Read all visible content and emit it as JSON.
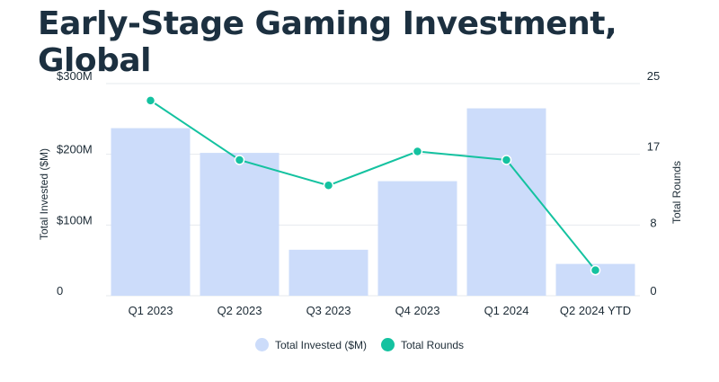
{
  "chart_data": {
    "type": "bar",
    "title": "Early-Stage Gaming Investment, Global",
    "categories": [
      "Q1 2023",
      "Q2 2023",
      "Q3 2023",
      "Q4 2023",
      "Q1 2024",
      "Q2 2024 YTD"
    ],
    "series": [
      {
        "name": "Total Invested ($M)",
        "type": "bar",
        "axis": "left",
        "values": [
          237,
          202,
          65,
          162,
          265,
          45
        ]
      },
      {
        "name": "Total Rounds",
        "type": "line",
        "axis": "right",
        "values": [
          23,
          16,
          13,
          17,
          16,
          3
        ]
      }
    ],
    "ylabel": "Total Invested ($M)",
    "y2label": "Total Rounds",
    "ylim": [
      0,
      300
    ],
    "y2lim": [
      0,
      25
    ],
    "yticks": [
      0,
      100,
      200,
      300
    ],
    "yticklabels": [
      "0",
      "$100M",
      "$200M",
      "$300M"
    ],
    "y2ticks": [
      0,
      8,
      17,
      25
    ],
    "y2ticklabels": [
      "0",
      "8",
      "17",
      "25"
    ],
    "grid": true,
    "legend": "bottom-center",
    "colors": {
      "bar": "#ccdcfa",
      "line": "#14c2a0",
      "grid": "#e6e9ee",
      "title": "#1c3040"
    }
  }
}
